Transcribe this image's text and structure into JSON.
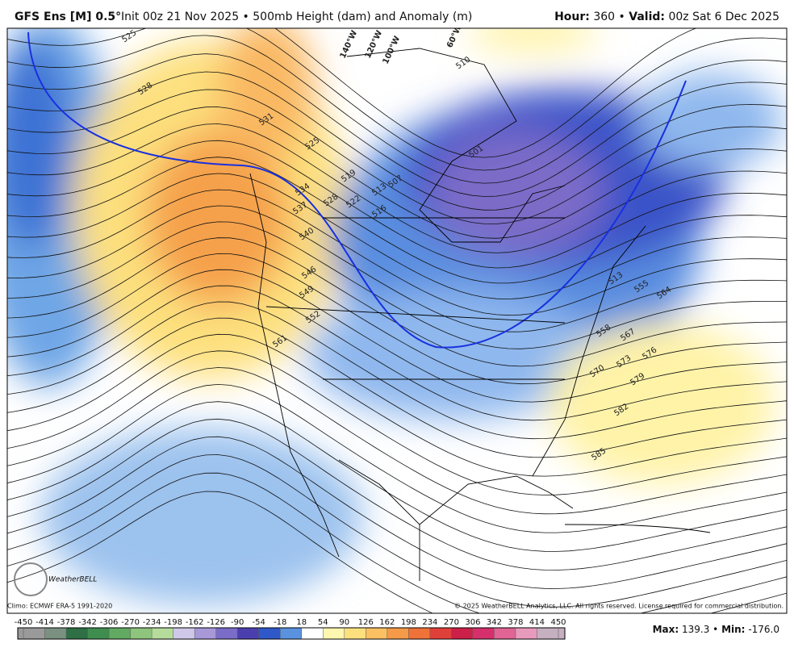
{
  "header": {
    "model": "GFS Ens [M] 0.5°",
    "title": "Init 00z 21 Nov 2025 • 500mb Height (dam) and Anomaly (m)",
    "hour_label": "Hour:",
    "hour": "360",
    "separator": "•",
    "valid_label": "Valid:",
    "valid": "00z Sat 6 Dec 2025"
  },
  "map": {
    "contour_labels": [
      "525",
      "528",
      "531",
      "525",
      "534",
      "537",
      "528",
      "519",
      "522",
      "513",
      "516",
      "507",
      "510",
      "501",
      "540",
      "546",
      "549",
      "552",
      "561",
      "513",
      "555",
      "564",
      "558",
      "567",
      "576",
      "570",
      "573",
      "579",
      "582",
      "585"
    ],
    "longitude_labels": [
      "140°W",
      "120°W",
      "100°W",
      "60°W"
    ],
    "logo": "WeatherBELL"
  },
  "footer": {
    "climo": "Climo: ECMWF ERA-5 1991-2020",
    "copyright": "© 2025 WeatherBELL Analytics, LLC. All rights reserved. License required for commercial distribution.",
    "max_label": "Max:",
    "max": "139.3",
    "separator": "•",
    "min_label": "Min:",
    "min": "-176.0"
  },
  "colorbar": {
    "ticks": [
      -450,
      -414,
      -378,
      -342,
      -306,
      -270,
      -234,
      -198,
      -162,
      -126,
      -90,
      -54,
      -18,
      18,
      54,
      90,
      126,
      162,
      198,
      234,
      270,
      306,
      342,
      378,
      414,
      450
    ],
    "colors": [
      "#9a9a9a",
      "#7a9080",
      "#2f6f45",
      "#3f8e50",
      "#62aa62",
      "#8ec47c",
      "#b6dc9c",
      "#cfc8e8",
      "#a898d8",
      "#7b6cc8",
      "#4b3fb0",
      "#2f58c8",
      "#5a92e0",
      "#ffffff",
      "#fff6b0",
      "#fde07e",
      "#fbc062",
      "#f59a48",
      "#ef7238",
      "#e0403a",
      "#cc2048",
      "#d6306c",
      "#e06494",
      "#e79abc",
      "#c4b0c0"
    ]
  }
}
